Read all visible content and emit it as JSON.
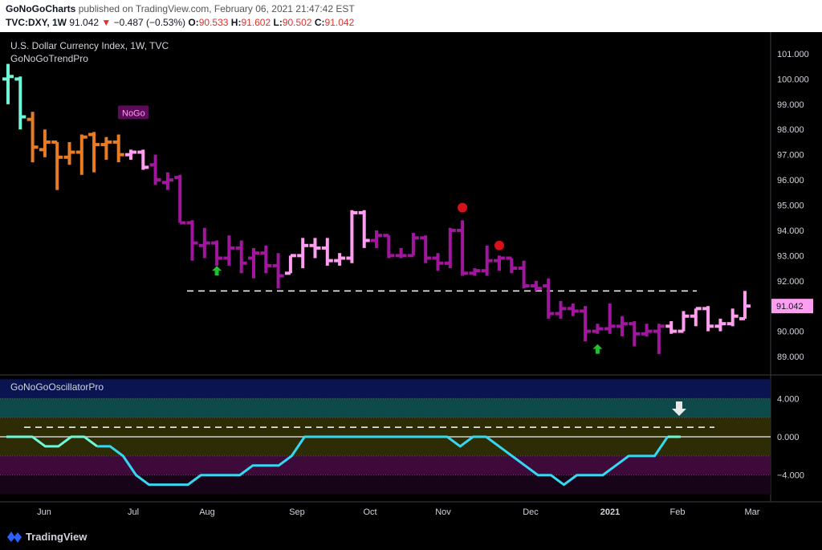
{
  "header": {
    "publisher": "GoNoGoCharts",
    "published_text": "published on TradingView.com, February 06, 2021 21:47:42 EST",
    "symbol": "TVC:DXY, 1W",
    "last": "91.042",
    "change": "−0.487 (−0.53%)",
    "o_label": "O:",
    "o_value": "90.533",
    "h_label": "H:",
    "h_value": "91.602",
    "l_label": "L:",
    "l_value": "90.502",
    "c_label": "C:",
    "c_value": "91.042"
  },
  "footer": {
    "brand": "TradingView"
  },
  "colors": {
    "go_strong": "#ff9ef0",
    "go_weak": "#a0169c",
    "nogo": "#e87c24",
    "aqua": "#6ff7d8",
    "osc_line": "#35d8f0",
    "label_box": "#ff9ef0",
    "nogo_tag": "#5e0a5a"
  },
  "chart_data": [
    {
      "type": "ohlc",
      "title": "U.S. Dollar Currency Index, 1W, TVC",
      "indicator": "GoNoGoTrendPro",
      "ylim": [
        88.3,
        101.7
      ],
      "y_ticks": [
        "101.000",
        "100.000",
        "99.000",
        "98.000",
        "97.000",
        "96.000",
        "95.000",
        "94.000",
        "93.000",
        "92.000",
        "91.000",
        "90.000",
        "89.000"
      ],
      "x_ticks": [
        "Jun",
        "Jul",
        "Aug",
        "Sep",
        "Oct",
        "Nov",
        "Dec",
        "2021",
        "Feb",
        "Mar"
      ],
      "last_price_label": "91.042",
      "resistance_level": 91.6,
      "nogo_tag": "NoGo",
      "bars": [
        {
          "o": 100.0,
          "h": 100.6,
          "l": 99.0,
          "c": 100.1,
          "color": "aqua"
        },
        {
          "o": 100.0,
          "h": 100.1,
          "l": 98.0,
          "c": 98.5,
          "color": "aqua"
        },
        {
          "o": 98.4,
          "h": 98.7,
          "l": 96.7,
          "c": 97.3,
          "color": "nogo"
        },
        {
          "o": 97.2,
          "h": 98.0,
          "l": 96.9,
          "c": 97.5,
          "color": "nogo"
        },
        {
          "o": 97.5,
          "h": 97.5,
          "l": 95.6,
          "c": 96.9,
          "color": "nogo"
        },
        {
          "o": 96.9,
          "h": 97.5,
          "l": 96.6,
          "c": 97.1,
          "color": "nogo"
        },
        {
          "o": 97.1,
          "h": 97.8,
          "l": 96.2,
          "c": 97.7,
          "color": "nogo"
        },
        {
          "o": 97.8,
          "h": 97.9,
          "l": 96.3,
          "c": 97.4,
          "color": "nogo"
        },
        {
          "o": 97.4,
          "h": 97.7,
          "l": 96.8,
          "c": 97.5,
          "color": "nogo"
        },
        {
          "o": 97.5,
          "h": 97.8,
          "l": 96.7,
          "c": 97.0,
          "color": "nogo"
        },
        {
          "o": 97.0,
          "h": 97.2,
          "l": 96.8,
          "c": 97.1,
          "color": "go_strong"
        },
        {
          "o": 97.1,
          "h": 97.2,
          "l": 96.4,
          "c": 96.5,
          "color": "go_strong"
        },
        {
          "o": 96.6,
          "h": 97.0,
          "l": 95.8,
          "c": 96.0,
          "color": "go_weak"
        },
        {
          "o": 95.9,
          "h": 96.3,
          "l": 95.6,
          "c": 96.0,
          "color": "go_weak"
        },
        {
          "o": 96.1,
          "h": 96.2,
          "l": 94.3,
          "c": 94.3,
          "color": "go_weak"
        },
        {
          "o": 94.3,
          "h": 94.4,
          "l": 92.8,
          "c": 93.5,
          "color": "go_weak"
        },
        {
          "o": 93.4,
          "h": 94.1,
          "l": 92.9,
          "c": 93.5,
          "color": "go_weak"
        },
        {
          "o": 93.5,
          "h": 93.6,
          "l": 92.6,
          "c": 92.9,
          "color": "go_weak"
        },
        {
          "o": 92.9,
          "h": 93.8,
          "l": 92.6,
          "c": 93.3,
          "color": "go_weak"
        },
        {
          "o": 93.3,
          "h": 93.6,
          "l": 92.3,
          "c": 92.7,
          "color": "go_weak"
        },
        {
          "o": 92.9,
          "h": 93.3,
          "l": 92.1,
          "c": 93.1,
          "color": "go_weak"
        },
        {
          "o": 93.1,
          "h": 93.4,
          "l": 92.3,
          "c": 92.6,
          "color": "go_weak"
        },
        {
          "o": 92.6,
          "h": 93.1,
          "l": 91.7,
          "c": 92.2,
          "color": "go_weak"
        },
        {
          "o": 92.3,
          "h": 93.0,
          "l": 92.3,
          "c": 93.0,
          "color": "go_strong"
        },
        {
          "o": 93.0,
          "h": 93.7,
          "l": 92.5,
          "c": 93.4,
          "color": "go_strong"
        },
        {
          "o": 93.4,
          "h": 93.7,
          "l": 92.9,
          "c": 93.3,
          "color": "go_strong"
        },
        {
          "o": 93.3,
          "h": 93.7,
          "l": 92.6,
          "c": 92.8,
          "color": "go_strong"
        },
        {
          "o": 92.8,
          "h": 93.1,
          "l": 92.6,
          "c": 92.9,
          "color": "go_strong"
        },
        {
          "o": 92.9,
          "h": 94.8,
          "l": 92.7,
          "c": 94.7,
          "color": "go_strong"
        },
        {
          "o": 94.7,
          "h": 94.8,
          "l": 93.3,
          "c": 93.6,
          "color": "go_strong"
        },
        {
          "o": 93.6,
          "h": 94.0,
          "l": 93.3,
          "c": 93.8,
          "color": "go_weak"
        },
        {
          "o": 93.8,
          "h": 93.8,
          "l": 92.9,
          "c": 93.0,
          "color": "go_weak"
        },
        {
          "o": 93.0,
          "h": 93.3,
          "l": 92.9,
          "c": 93.0,
          "color": "go_weak"
        },
        {
          "o": 93.0,
          "h": 93.9,
          "l": 93.0,
          "c": 93.7,
          "color": "go_weak"
        },
        {
          "o": 93.7,
          "h": 93.8,
          "l": 92.7,
          "c": 92.9,
          "color": "go_weak"
        },
        {
          "o": 92.9,
          "h": 93.1,
          "l": 92.4,
          "c": 92.7,
          "color": "go_weak"
        },
        {
          "o": 92.7,
          "h": 94.1,
          "l": 92.5,
          "c": 94.0,
          "color": "go_weak"
        },
        {
          "o": 94.0,
          "h": 94.4,
          "l": 92.2,
          "c": 92.3,
          "color": "go_weak"
        },
        {
          "o": 92.3,
          "h": 92.5,
          "l": 92.2,
          "c": 92.4,
          "color": "go_weak"
        },
        {
          "o": 92.4,
          "h": 93.4,
          "l": 92.2,
          "c": 92.8,
          "color": "go_weak"
        },
        {
          "o": 92.8,
          "h": 93.0,
          "l": 92.4,
          "c": 92.9,
          "color": "go_weak"
        },
        {
          "o": 92.9,
          "h": 92.9,
          "l": 92.3,
          "c": 92.5,
          "color": "go_weak"
        },
        {
          "o": 92.5,
          "h": 92.8,
          "l": 91.7,
          "c": 91.8,
          "color": "go_weak"
        },
        {
          "o": 91.8,
          "h": 92.0,
          "l": 91.6,
          "c": 91.7,
          "color": "go_weak"
        },
        {
          "o": 91.8,
          "h": 92.1,
          "l": 90.5,
          "c": 90.7,
          "color": "go_weak"
        },
        {
          "o": 90.7,
          "h": 91.2,
          "l": 90.5,
          "c": 90.9,
          "color": "go_weak"
        },
        {
          "o": 90.9,
          "h": 91.1,
          "l": 90.6,
          "c": 90.8,
          "color": "go_weak"
        },
        {
          "o": 90.8,
          "h": 91.0,
          "l": 89.6,
          "c": 90.0,
          "color": "go_weak"
        },
        {
          "o": 90.0,
          "h": 90.3,
          "l": 89.9,
          "c": 90.1,
          "color": "go_weak"
        },
        {
          "o": 90.1,
          "h": 91.1,
          "l": 89.9,
          "c": 90.2,
          "color": "go_weak"
        },
        {
          "o": 90.2,
          "h": 90.6,
          "l": 89.8,
          "c": 90.3,
          "color": "go_weak"
        },
        {
          "o": 90.3,
          "h": 90.4,
          "l": 89.4,
          "c": 89.9,
          "color": "go_weak"
        },
        {
          "o": 89.9,
          "h": 90.3,
          "l": 89.8,
          "c": 90.0,
          "color": "go_weak"
        },
        {
          "o": 90.0,
          "h": 90.3,
          "l": 89.1,
          "c": 90.2,
          "color": "go_weak"
        },
        {
          "o": 90.2,
          "h": 90.4,
          "l": 89.9,
          "c": 90.0,
          "color": "go_strong"
        },
        {
          "o": 90.0,
          "h": 90.8,
          "l": 90.0,
          "c": 90.6,
          "color": "go_strong"
        },
        {
          "o": 90.6,
          "h": 90.9,
          "l": 90.2,
          "c": 90.9,
          "color": "go_strong"
        },
        {
          "o": 90.9,
          "h": 91.0,
          "l": 90.0,
          "c": 90.2,
          "color": "go_strong"
        },
        {
          "o": 90.2,
          "h": 90.5,
          "l": 90.0,
          "c": 90.3,
          "color": "go_strong"
        },
        {
          "o": 90.3,
          "h": 90.9,
          "l": 90.2,
          "c": 90.6,
          "color": "go_strong"
        },
        {
          "o": 90.5,
          "h": 91.6,
          "l": 90.5,
          "c": 91.0,
          "color": "go_strong"
        }
      ],
      "markers": [
        {
          "type": "green-up-arrow",
          "bar": 17,
          "y": 92.4
        },
        {
          "type": "red-dot",
          "bar": 37,
          "y": 94.9
        },
        {
          "type": "red-dot",
          "bar": 40,
          "y": 93.4
        },
        {
          "type": "green-up-arrow",
          "bar": 48,
          "y": 89.3
        }
      ]
    },
    {
      "type": "line",
      "title": "GoNoGoOscillatorPro",
      "ylim": [
        -6.2,
        6.2
      ],
      "y_ticks": [
        "4.000",
        "0.000",
        "−4.000"
      ],
      "threshold": 1.0,
      "values": [
        0,
        0,
        0,
        -1,
        -1,
        0,
        0,
        -1,
        -1,
        -2,
        -4,
        -5,
        -5,
        -5,
        -5,
        -4,
        -4,
        -4,
        -4,
        -3,
        -3,
        -3,
        -2,
        0,
        0,
        0,
        0,
        0,
        0,
        0,
        0,
        0,
        0,
        0,
        0,
        -1,
        0,
        0,
        -1,
        -2,
        -3,
        -4,
        -4,
        -5,
        -4,
        -4,
        -4,
        -3,
        -2,
        -2,
        -2,
        0,
        0
      ],
      "line_color_segments": [
        {
          "from": 0,
          "to": 7,
          "color": "aqua"
        },
        {
          "from": 7,
          "to": 51,
          "color": "osc_line"
        },
        {
          "from": 51,
          "to": 52,
          "color": "aqua"
        }
      ]
    }
  ]
}
